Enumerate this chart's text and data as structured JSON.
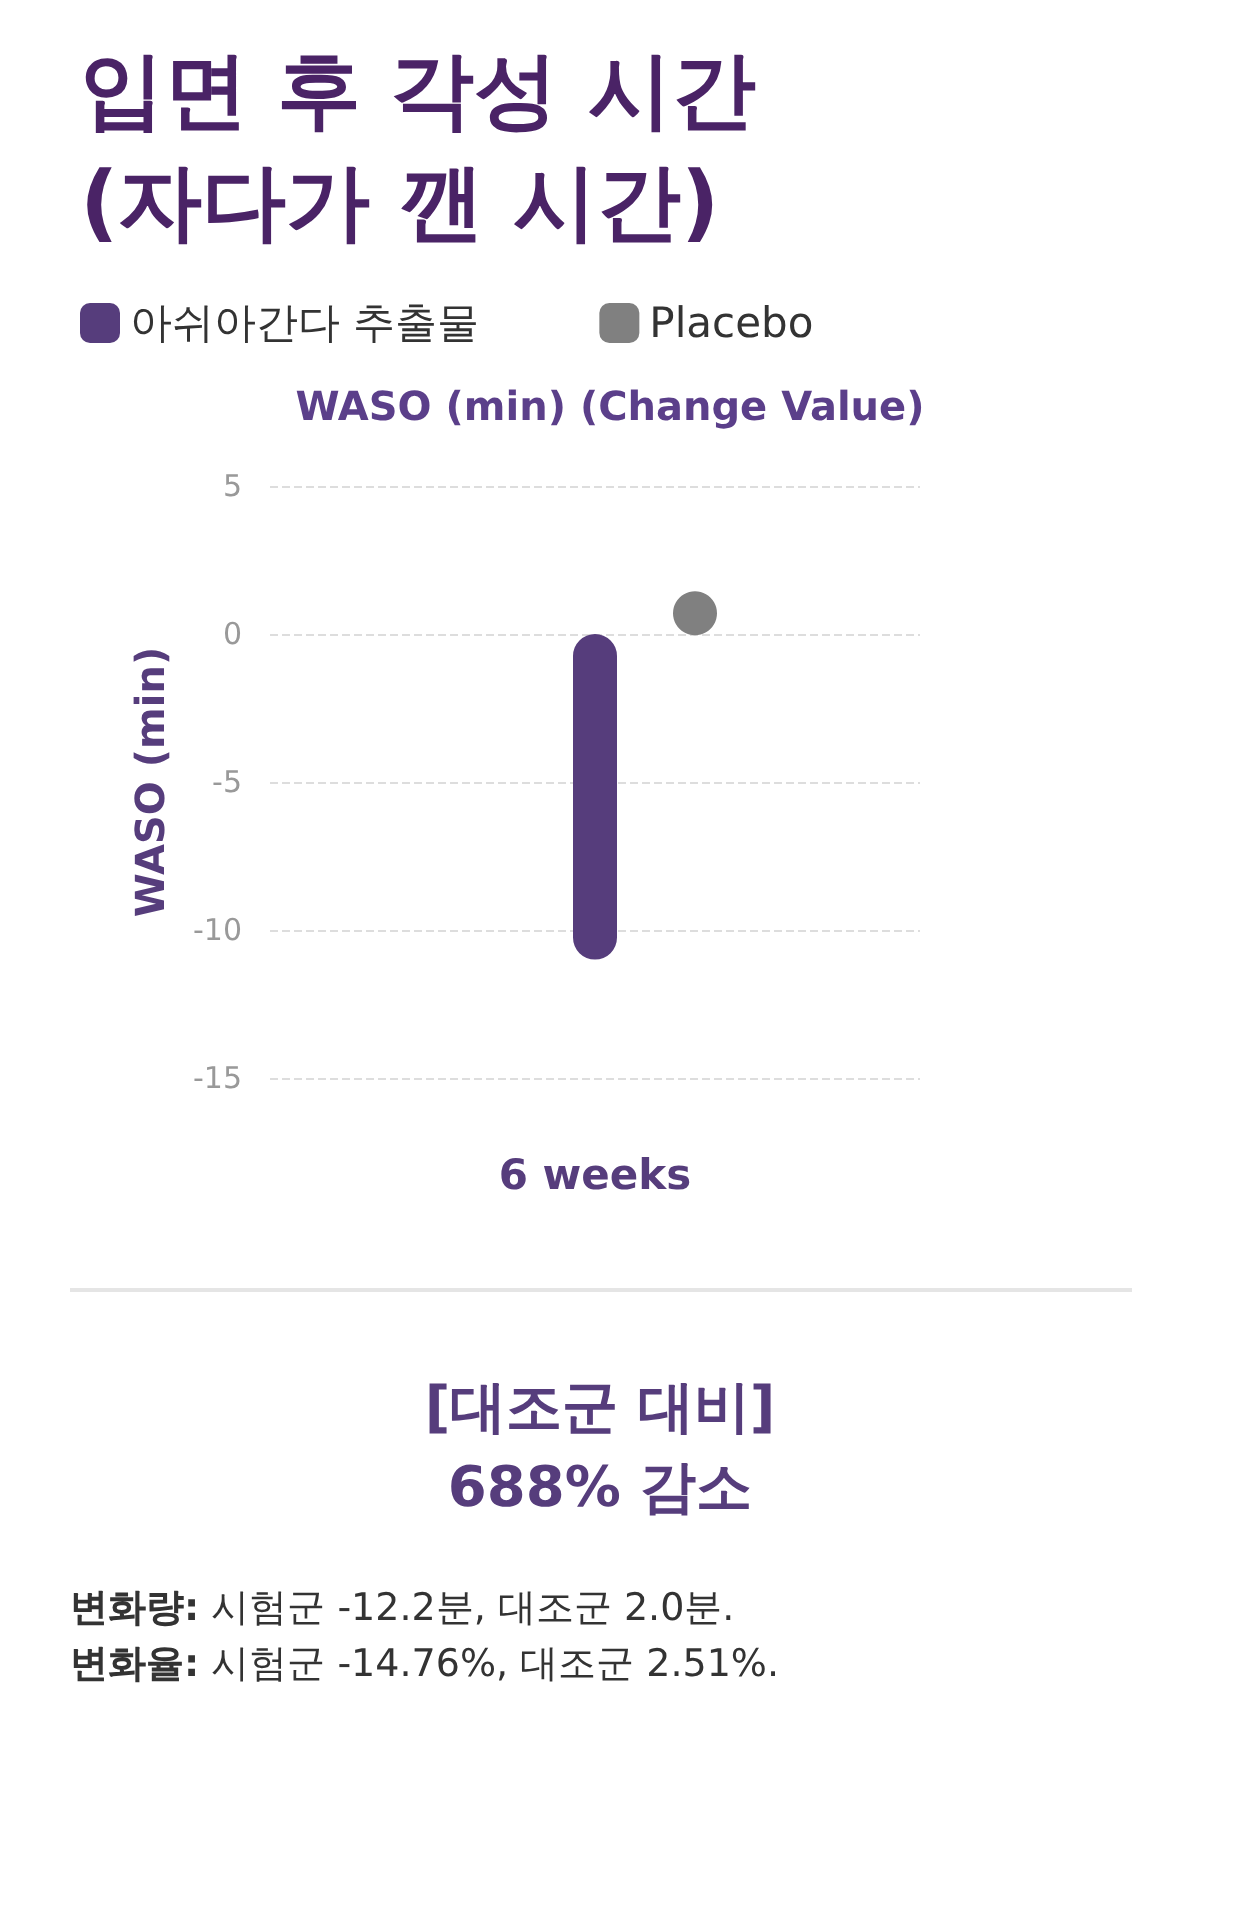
{
  "chart_data": {
    "type": "bar",
    "title": "입면 후 각성 시간\n(자다가 깬 시간)",
    "subtitle": "WASO (min) (Change Value)",
    "ylabel": "WASO (min)",
    "categories": [
      "6 weeks"
    ],
    "series": [
      {
        "name": "아쉬아간다 추출물",
        "color": "#563d7c",
        "values": [
          -11
        ]
      },
      {
        "name": "Placebo",
        "type": "scatter",
        "x": [
          "6 weeks"
        ],
        "color": "#808080",
        "values": [
          0.7
        ]
      }
    ],
    "ylim": [
      -15,
      5
    ],
    "yticks": [
      -15,
      -10,
      -5,
      0,
      5
    ],
    "grid": "y",
    "legend": "top left",
    "annotations": [
      "[대조군 대비]",
      "688% 감소",
      "변화량: 시험군 -12.2분, 대조군 2.0분.",
      "변화율: 시험군 -14.76%, 대조군 2.51%."
    ]
  }
}
